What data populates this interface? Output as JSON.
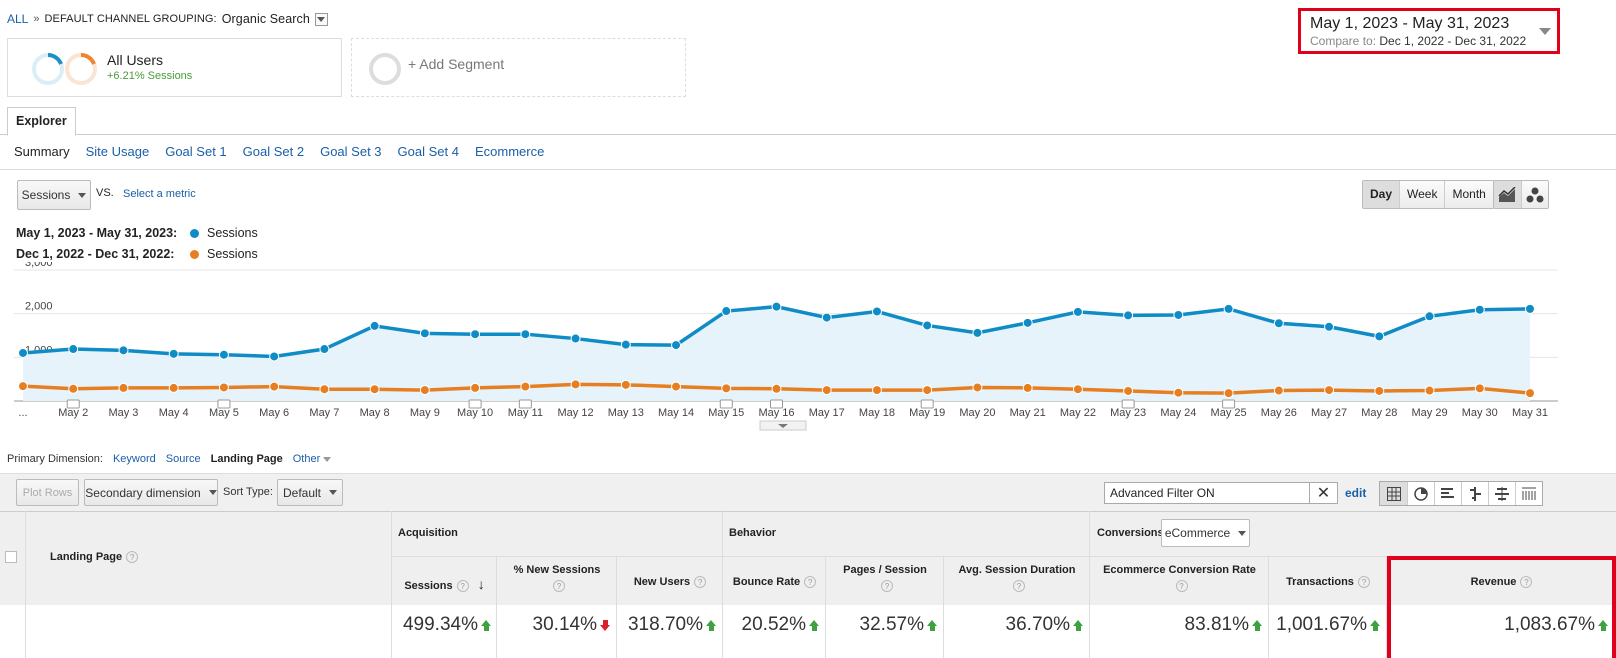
{
  "breadcrumb": {
    "all": "ALL",
    "sep": "»",
    "group_label": "DEFAULT CHANNEL GROUPING:",
    "group_value": "Organic Search"
  },
  "segments": {
    "active": {
      "title": "All Users",
      "sub": "+6.21% Sessions",
      "colors": [
        "#1f8fc8",
        "#f0842c"
      ]
    },
    "add": "+ Add Segment"
  },
  "daterange": {
    "main": "May 1, 2023 - May 31, 2023",
    "compare_label": "Compare to:",
    "compare_value": "Dec 1, 2022 - Dec 31, 2022"
  },
  "tabs": {
    "explorer": "Explorer"
  },
  "subtabs": [
    "Summary",
    "Site Usage",
    "Goal Set 1",
    "Goal Set 2",
    "Goal Set 3",
    "Goal Set 4",
    "Ecommerce"
  ],
  "controls": {
    "metric": "Sessions",
    "vs": "VS.",
    "select_metric": "Select a metric",
    "periods": [
      "Day",
      "Week",
      "Month"
    ]
  },
  "legend": [
    {
      "label": "May 1, 2023 - May 31, 2023:",
      "series": "Sessions",
      "color": "#0f8bc6"
    },
    {
      "label": "Dec 1, 2022 - Dec 31, 2022:",
      "series": "Sessions",
      "color": "#e67e22"
    }
  ],
  "chart_data": {
    "type": "line",
    "x": [
      "...",
      "May 2",
      "May 3",
      "May 4",
      "May 5",
      "May 6",
      "May 7",
      "May 8",
      "May 9",
      "May 10",
      "May 11",
      "May 12",
      "May 13",
      "May 14",
      "May 15",
      "May 16",
      "May 17",
      "May 18",
      "May 19",
      "May 20",
      "May 21",
      "May 22",
      "May 23",
      "May 24",
      "May 25",
      "May 26",
      "May 27",
      "May 28",
      "May 29",
      "May 30",
      "May 31"
    ],
    "yticks": [
      "1,000",
      "2,000",
      "3,000"
    ],
    "ylim": [
      0,
      3000
    ],
    "series": [
      {
        "name": "Sessions",
        "color": "#0f8bc6",
        "values": [
          1100,
          1190,
          1160,
          1080,
          1060,
          1020,
          1190,
          1720,
          1550,
          1530,
          1530,
          1430,
          1290,
          1280,
          2060,
          2160,
          1910,
          2050,
          1730,
          1560,
          1790,
          2040,
          1960,
          1970,
          2110,
          1780,
          1700,
          1480,
          1940,
          2090,
          2110
        ]
      },
      {
        "name": "Sessions",
        "color": "#e67e22",
        "values": [
          340,
          280,
          300,
          300,
          310,
          330,
          270,
          270,
          250,
          300,
          330,
          380,
          370,
          330,
          290,
          280,
          250,
          250,
          250,
          310,
          300,
          270,
          230,
          190,
          180,
          240,
          250,
          230,
          240,
          290,
          180
        ]
      }
    ]
  },
  "primary_dimension": {
    "label": "Primary Dimension:",
    "options": [
      "Keyword",
      "Source",
      "Landing Page",
      "Other"
    ],
    "active": "Landing Page"
  },
  "toolbar": {
    "plot_rows": "Plot Rows",
    "secondary": "Secondary dimension",
    "sort_label": "Sort Type:",
    "sort_value": "Default",
    "filter_value": "Advanced Filter ON",
    "edit": "edit"
  },
  "table": {
    "landing_page": "Landing Page",
    "groups": {
      "acquisition": "Acquisition",
      "behavior": "Behavior",
      "conversions": "Conversions",
      "conv_select": "eCommerce"
    },
    "columns": [
      "Sessions",
      "% New Sessions",
      "New Users",
      "Bounce Rate",
      "Pages / Session",
      "Avg. Session Duration",
      "Ecommerce Conversion Rate",
      "Transactions",
      "Revenue"
    ],
    "totals": [
      "499.34%",
      "30.14%",
      "318.70%",
      "20.52%",
      "32.57%",
      "36.70%",
      "83.81%",
      "1,001.67%",
      "1,083.67%"
    ],
    "q": "?"
  }
}
